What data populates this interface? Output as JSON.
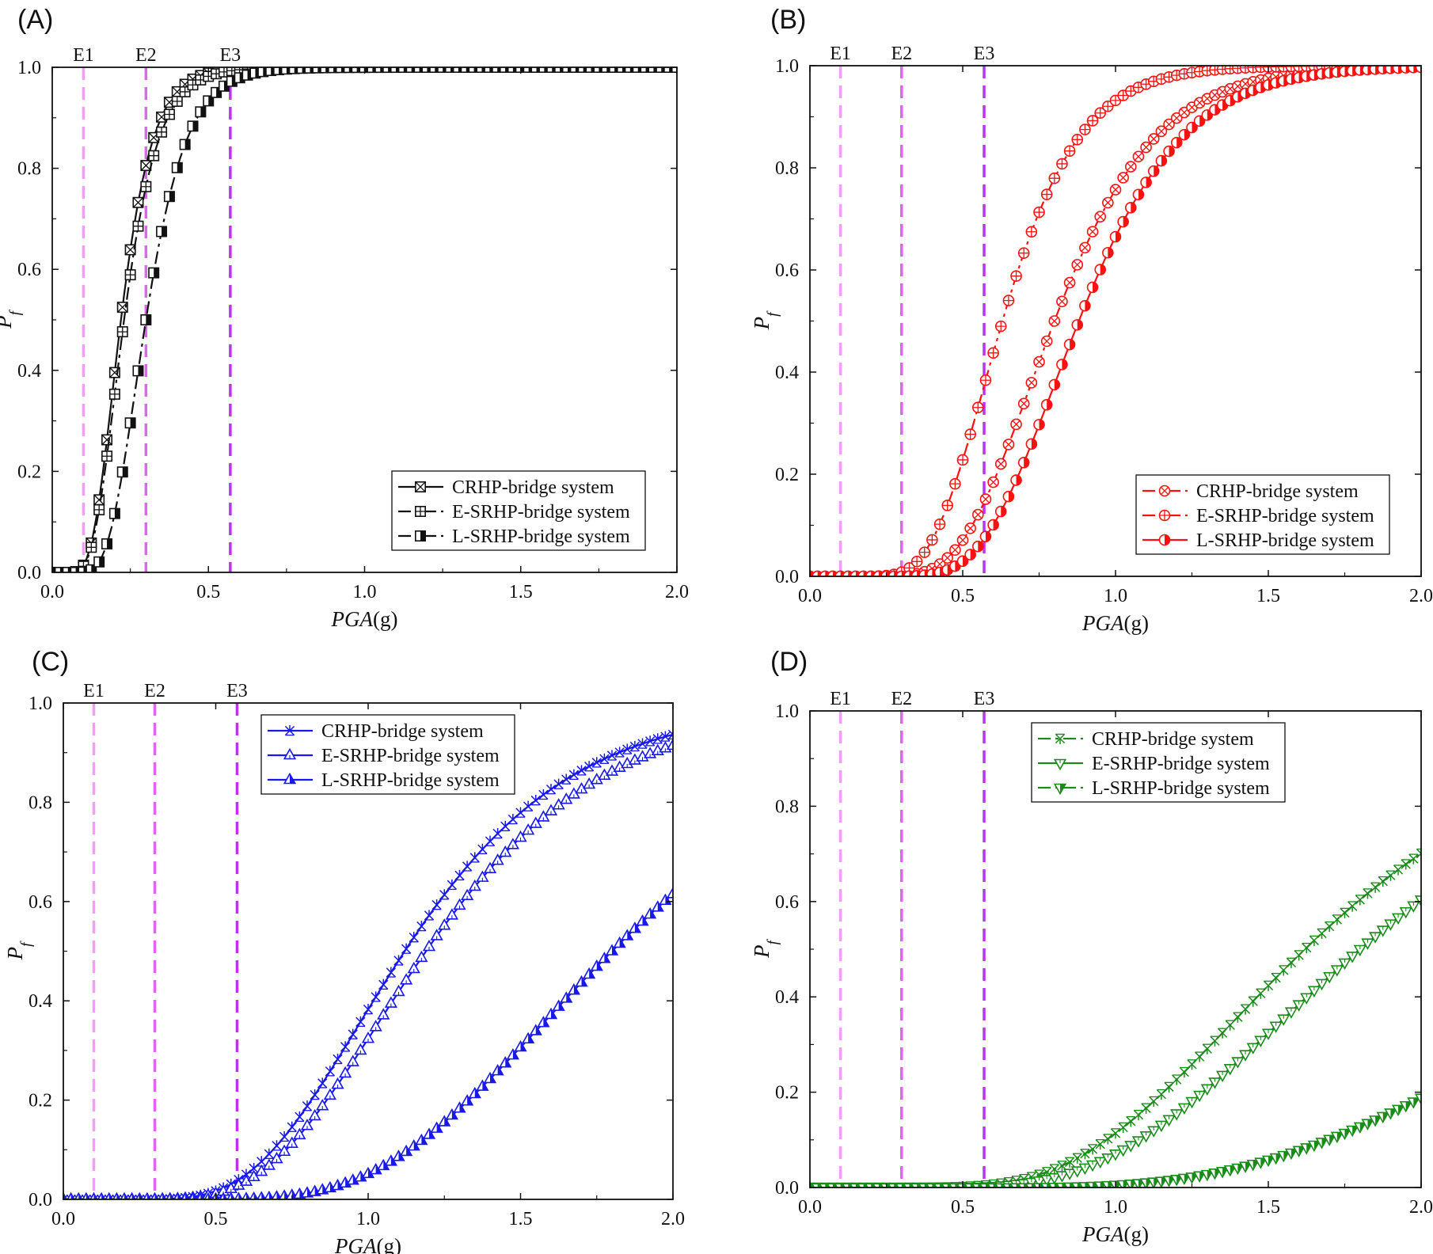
{
  "figure": {
    "style": {
      "eq_colors": [
        "#f0a0f2",
        "#dd66ee",
        "#bb33ee"
      ],
      "series_colors": {
        "A": "#111111",
        "B": "#ff1010",
        "C": "#1818ee",
        "D": "#1a8a1a"
      }
    }
  },
  "chart_data": [
    {
      "panel": "(A)",
      "type": "line",
      "xlabel": "PGA(g)",
      "ylabel": "Pf",
      "xlim": [
        0,
        2.0
      ],
      "ylim": [
        0,
        1.0
      ],
      "xticks": [
        "0.0",
        "0.5",
        "1.0",
        "1.5",
        "2.0"
      ],
      "yticks": [
        "0.0",
        "0.2",
        "0.4",
        "0.6",
        "0.8",
        "1.0"
      ],
      "legend_position": "bottom-right",
      "earthquake_levels": [
        {
          "label": "E1",
          "pga": 0.1
        },
        {
          "label": "E2",
          "pga": 0.3
        },
        {
          "label": "E3",
          "pga": 0.57
        }
      ],
      "series": [
        {
          "name": "CRHP-bridge system",
          "marker": "x-box",
          "dash": "solid",
          "median": 0.22,
          "beta": 0.36
        },
        {
          "name": "E-SRHP-bridge system",
          "marker": "plus-box",
          "dash": "dashdot",
          "median": 0.23,
          "beta": 0.37
        },
        {
          "name": "L-SRHP-bridge system",
          "marker": "half-box",
          "dash": "dashdot",
          "median": 0.3,
          "beta": 0.34
        }
      ]
    },
    {
      "panel": "(B)",
      "type": "line",
      "xlabel": "PGA(g)",
      "ylabel": "Pf",
      "xlim": [
        0,
        2.0
      ],
      "ylim": [
        0,
        1.0
      ],
      "xticks": [
        "0.0",
        "0.5",
        "1.0",
        "1.5",
        "2.0"
      ],
      "yticks": [
        "0.0",
        "0.2",
        "0.4",
        "0.6",
        "0.8",
        "1.0"
      ],
      "legend_position": "bottom-right",
      "earthquake_levels": [
        {
          "label": "E1",
          "pga": 0.1
        },
        {
          "label": "E2",
          "pga": 0.3
        },
        {
          "label": "E3",
          "pga": 0.57
        }
      ],
      "series": [
        {
          "name": "CRHP-bridge system",
          "marker": "x-circle",
          "dash": "dashdot",
          "median": 0.8,
          "beta": 0.32
        },
        {
          "name": "E-SRHP-bridge system",
          "marker": "plus-circle",
          "dash": "dashdot",
          "median": 0.63,
          "beta": 0.31
        },
        {
          "name": "L-SRHP-bridge system",
          "marker": "half-circle",
          "dash": "solid",
          "median": 0.88,
          "beta": 0.3
        }
      ]
    },
    {
      "panel": "(C)",
      "type": "line",
      "xlabel": "PGA(g)",
      "ylabel": "Pf",
      "xlim": [
        0,
        2.0
      ],
      "ylim": [
        0,
        1.0
      ],
      "xticks": [
        "0.0",
        "0.5",
        "1.0",
        "1.5",
        "2.0"
      ],
      "yticks": [
        "0.0",
        "0.2",
        "0.4",
        "0.6",
        "0.8",
        "1.0"
      ],
      "legend_position": "top-left",
      "earthquake_levels": [
        {
          "label": "E1",
          "pga": 0.1
        },
        {
          "label": "E2",
          "pga": 0.3
        },
        {
          "label": "E3",
          "pga": 0.57
        }
      ],
      "series": [
        {
          "name": "CRHP-bridge system",
          "marker": "star",
          "dash": "solid",
          "median": 1.12,
          "beta": 0.38
        },
        {
          "name": "E-SRHP-bridge system",
          "marker": "triangle-open",
          "dash": "solid",
          "median": 1.19,
          "beta": 0.38
        },
        {
          "name": "L-SRHP-bridge system",
          "marker": "triangle-half",
          "dash": "solid",
          "median": 1.8,
          "beta": 0.36
        }
      ]
    },
    {
      "panel": "(D)",
      "type": "line",
      "xlabel": "PGA(g)",
      "ylabel": "Pf",
      "xlim": [
        0,
        2.0
      ],
      "ylim": [
        0,
        1.0
      ],
      "xticks": [
        "0.0",
        "0.5",
        "1.0",
        "1.5",
        "2.0"
      ],
      "yticks": [
        "0.0",
        "0.2",
        "0.4",
        "0.6",
        "0.8",
        "1.0"
      ],
      "legend_position": "top-center",
      "earthquake_levels": [
        {
          "label": "E1",
          "pga": 0.1
        },
        {
          "label": "E2",
          "pga": 0.3
        },
        {
          "label": "E3",
          "pga": 0.57
        }
      ],
      "series": [
        {
          "name": "CRHP-bridge system",
          "marker": "star-down",
          "dash": "dashdot",
          "median": 1.62,
          "beta": 0.4
        },
        {
          "name": "E-SRHP-bridge system",
          "marker": "triangle-down-open",
          "dash": "solid",
          "median": 1.8,
          "beta": 0.4
        },
        {
          "name": "L-SRHP-bridge system",
          "marker": "triangle-down-half",
          "dash": "dashdot",
          "median": 2.9,
          "beta": 0.42
        }
      ]
    }
  ]
}
